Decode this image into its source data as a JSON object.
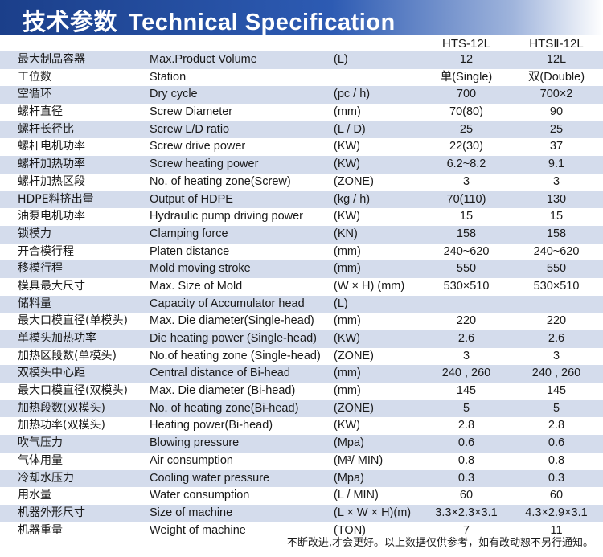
{
  "header": {
    "title_zh": "技术参数",
    "title_en": "Technical Specification"
  },
  "columns": {
    "model_a": "HTS-12L",
    "model_b": "HTSⅡ-12L"
  },
  "rows": [
    {
      "zh": "最大制品容器",
      "en": "Max.Product Volume",
      "unit": "(L)",
      "a": "12",
      "b": "12L"
    },
    {
      "zh": "工位数",
      "en": "Station",
      "unit": "",
      "a": "单(Single)",
      "b": "双(Double)"
    },
    {
      "zh": "空循环",
      "en": "Dry cycle",
      "unit": "(pc / h)",
      "a": "700",
      "b": "700×2"
    },
    {
      "zh": "螺杆直径",
      "en": "Screw Diameter",
      "unit": "(mm)",
      "a": "70(80)",
      "b": "90"
    },
    {
      "zh": "螺杆长径比",
      "en": "Screw L/D ratio",
      "unit": "(L / D)",
      "a": "25",
      "b": "25"
    },
    {
      "zh": "螺杆电机功率",
      "en": "Screw drive power",
      "unit": "(KW)",
      "a": "22(30)",
      "b": "37"
    },
    {
      "zh": "螺杆加热功率",
      "en": "Screw heating power",
      "unit": "(KW)",
      "a": "6.2~8.2",
      "b": "9.1"
    },
    {
      "zh": "螺杆加热区段",
      "en": "No. of heating zone(Screw)",
      "unit": "(ZONE)",
      "a": "3",
      "b": "3"
    },
    {
      "zh": "HDPE料挤出量",
      "en": "Output of HDPE",
      "unit": "(kg / h)",
      "a": "70(110)",
      "b": "130"
    },
    {
      "zh": "油泵电机功率",
      "en": "Hydraulic pump driving power",
      "unit": "(KW)",
      "a": "15",
      "b": "15"
    },
    {
      "zh": "锁模力",
      "en": "Clamping force",
      "unit": "(KN)",
      "a": "158",
      "b": "158"
    },
    {
      "zh": "开合模行程",
      "en": "Platen distance",
      "unit": "(mm)",
      "a": "240~620",
      "b": "240~620"
    },
    {
      "zh": "移模行程",
      "en": "Mold moving stroke",
      "unit": "(mm)",
      "a": "550",
      "b": "550"
    },
    {
      "zh": "模具最大尺寸",
      "en": "Max. Size of Mold",
      "unit": "(W × H) (mm)",
      "a": "530×510",
      "b": "530×510"
    },
    {
      "zh": "储料量",
      "en": "Capacity of Accumulator head",
      "unit": "(L)",
      "a": "",
      "b": ""
    },
    {
      "zh": "最大口模直径(单模头)",
      "en": "Max. Die diameter(Single-head)",
      "unit": "(mm)",
      "a": "220",
      "b": "220"
    },
    {
      "zh": "单模头加热功率",
      "en": "Die heating power (Single-head)",
      "unit": "(KW)",
      "a": "2.6",
      "b": "2.6"
    },
    {
      "zh": "加热区段数(单模头)",
      "en": "No.of heating zone (Single-head)",
      "unit": "(ZONE)",
      "a": "3",
      "b": "3"
    },
    {
      "zh": "双模头中心距",
      "en": "Central distance of Bi-head",
      "unit": "(mm)",
      "a": "240 , 260",
      "b": "240 , 260"
    },
    {
      "zh": "最大口模直径(双模头)",
      "en": "Max. Die diameter (Bi-head)",
      "unit": "(mm)",
      "a": "145",
      "b": "145"
    },
    {
      "zh": "加热段数(双模头)",
      "en": "No. of heating zone(Bi-head)",
      "unit": "(ZONE)",
      "a": "5",
      "b": "5"
    },
    {
      "zh": "加热功率(双模头)",
      "en": "Heating power(Bi-head)",
      "unit": "(KW)",
      "a": "2.8",
      "b": "2.8"
    },
    {
      "zh": "吹气压力",
      "en": "Blowing pressure",
      "unit": "(Mpa)",
      "a": "0.6",
      "b": "0.6"
    },
    {
      "zh": "气体用量",
      "en": "Air consumption",
      "unit": "(M³/ MIN)",
      "a": "0.8",
      "b": "0.8"
    },
    {
      "zh": "冷却水压力",
      "en": "Cooling water pressure",
      "unit": "(Mpa)",
      "a": "0.3",
      "b": "0.3"
    },
    {
      "zh": "用水量",
      "en": "Water consumption",
      "unit": "(L / MIN)",
      "a": "60",
      "b": "60"
    },
    {
      "zh": "机器外形尺寸",
      "en": "Size of machine",
      "unit": "(L × W × H)(m)",
      "a": "3.3×2.3×3.1",
      "b": "4.3×2.9×3.1"
    },
    {
      "zh": "机器重量",
      "en": "Weight of machine",
      "unit": "(TON)",
      "a": "7",
      "b": "11"
    }
  ],
  "footnote": "不断改进,才会更好。以上数据仅供参考，如有改动恕不另行通知。"
}
